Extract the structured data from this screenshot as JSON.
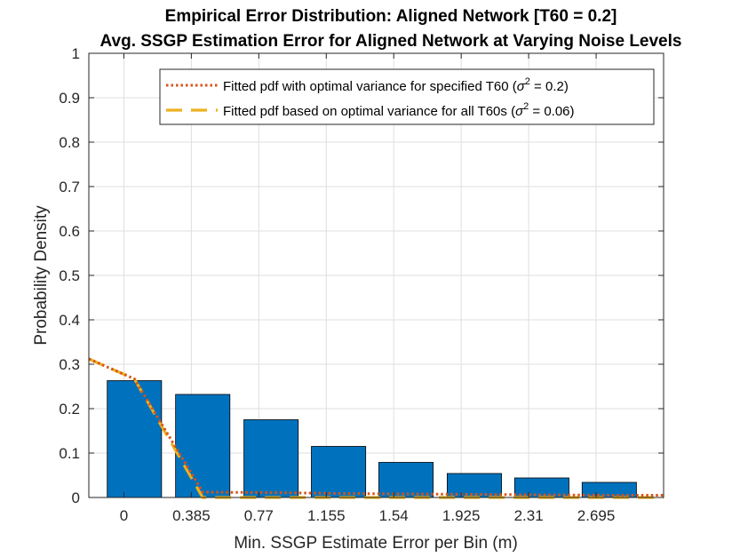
{
  "chart_data": {
    "type": "bar",
    "title": [
      "Empirical Error Distribution: Aligned Network [T60 = 0.2]",
      "Avg. SSGP Estimation Error for Aligned Network at Varying Noise Levels"
    ],
    "xlabel": "Min. SSGP Estimate Error per Bin (m)",
    "ylabel": "Probability Density",
    "xlim": [
      -0.2,
      3.08
    ],
    "ylim": [
      0,
      1
    ],
    "grid": true,
    "legend_position": "top-right",
    "x_ticks": [
      {
        "value": 0,
        "label": "0"
      },
      {
        "value": 0.385,
        "label": "0.385"
      },
      {
        "value": 0.77,
        "label": "0.77"
      },
      {
        "value": 1.155,
        "label": "1.155"
      },
      {
        "value": 1.54,
        "label": "1.54"
      },
      {
        "value": 1.925,
        "label": "1.925"
      },
      {
        "value": 2.31,
        "label": "2.31"
      },
      {
        "value": 2.695,
        "label": "2.695"
      }
    ],
    "y_ticks": [
      {
        "value": 0,
        "label": "0"
      },
      {
        "value": 0.1,
        "label": "0.1"
      },
      {
        "value": 0.2,
        "label": "0.2"
      },
      {
        "value": 0.3,
        "label": "0.3"
      },
      {
        "value": 0.4,
        "label": "0.4"
      },
      {
        "value": 0.5,
        "label": "0.5"
      },
      {
        "value": 0.6,
        "label": "0.6"
      },
      {
        "value": 0.7,
        "label": "0.7"
      },
      {
        "value": 0.8,
        "label": "0.8"
      },
      {
        "value": 0.9,
        "label": "0.9"
      },
      {
        "value": 1,
        "label": "1"
      }
    ],
    "bars": {
      "color": "#0072BD",
      "width": 0.31,
      "x": [
        0.06,
        0.45,
        0.84,
        1.225,
        1.61,
        2.0,
        2.385,
        2.77
      ],
      "values": [
        0.263,
        0.232,
        0.175,
        0.115,
        0.079,
        0.054,
        0.044,
        0.034
      ]
    },
    "series": [
      {
        "legend_prefix": "Fitted pdf with optimal variance for specified T60  (",
        "legend_suffix": " = 0.2)",
        "color": "#D95319",
        "style": "dotted",
        "x": [
          -0.2,
          0.06,
          0.45,
          0.84,
          1.225,
          1.61,
          2.0,
          2.385,
          2.77,
          3.08
        ],
        "y": [
          0.312,
          0.267,
          0.012,
          0.011,
          0.009,
          0.008,
          0.007,
          0.006,
          0.005,
          0.005
        ]
      },
      {
        "legend_prefix": "Fitted pdf based on optimal variance for all T60s (",
        "legend_suffix": " = 0.06)",
        "color": "#EDB120",
        "style": "dashed",
        "x": [
          -0.2,
          0.06,
          0.45,
          0.84,
          1.225,
          1.61,
          2.0,
          2.385,
          2.77,
          3.08
        ],
        "y": [
          0.312,
          0.267,
          0.0,
          0.0,
          0.0,
          0.0,
          0.0,
          0.0,
          0.0,
          0.0
        ]
      }
    ],
    "legend_symbol": "σ",
    "legend_exponent": "2"
  }
}
